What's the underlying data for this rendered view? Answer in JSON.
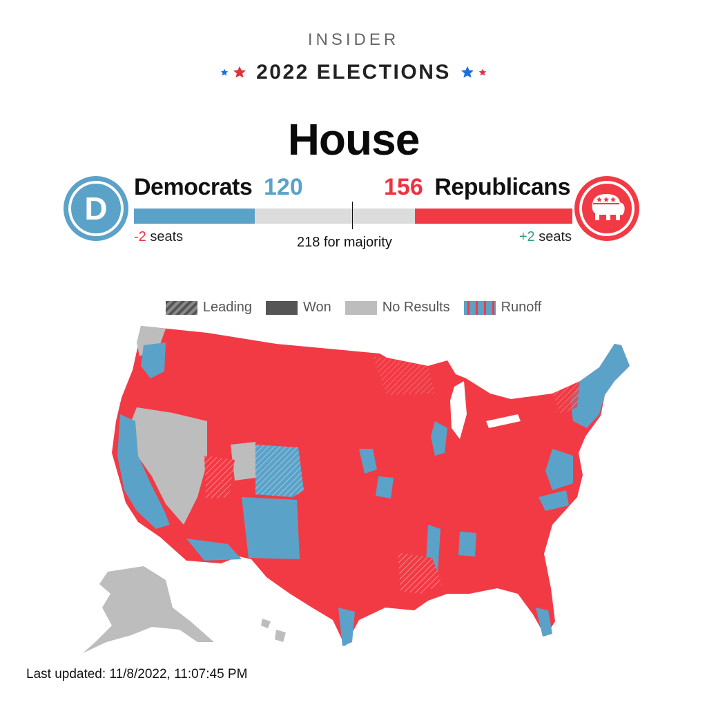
{
  "header": {
    "brand": "INSIDER",
    "section_title": "2022 ELECTIONS",
    "page_title": "House"
  },
  "democrats": {
    "name": "Democrats",
    "seats": "120",
    "change_delta": "-2",
    "change_suffix": " seats",
    "logo_letter": "D",
    "color": "#5ba2c9"
  },
  "republicans": {
    "name": "Republicans",
    "seats": "156",
    "change_delta": "+2",
    "change_suffix": " seats",
    "color": "#f23a45"
  },
  "majority": {
    "label": "218 for majority",
    "total_seats": 435,
    "threshold": 218
  },
  "legend": [
    {
      "label": "Leading",
      "swatch": "hatched"
    },
    {
      "label": "Won",
      "swatch": "solid"
    },
    {
      "label": "No Results",
      "swatch": "gray"
    },
    {
      "label": "Runoff",
      "swatch": "striped"
    }
  ],
  "map": {
    "colors": {
      "republican": "#f23a45",
      "democrat": "#5ba2c9",
      "no_results": "#bdbdbd",
      "leading_republican": "#d9767c",
      "border": "#ffffff"
    }
  },
  "footer": {
    "last_updated": "Last updated: 11/8/2022, 11:07:45 PM"
  }
}
